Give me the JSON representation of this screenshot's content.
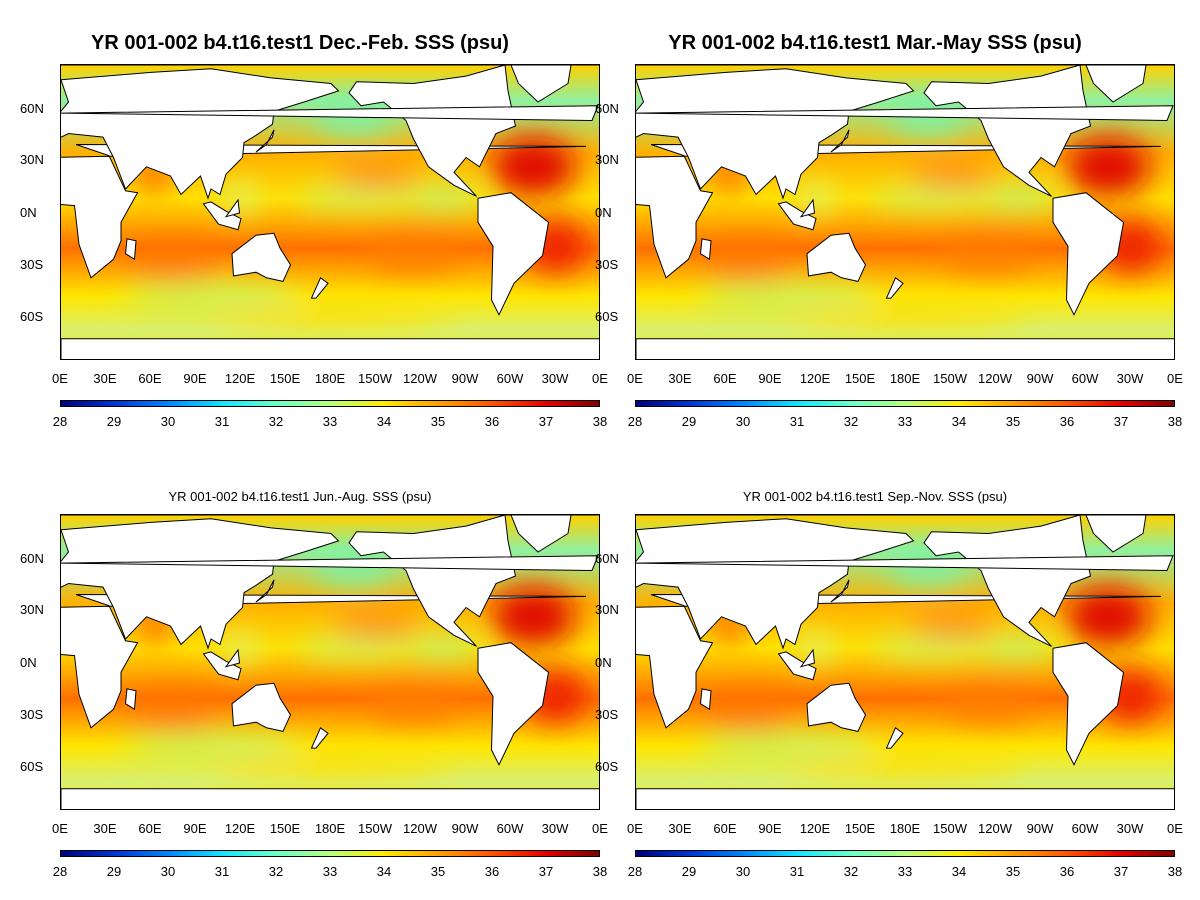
{
  "colorbar": {
    "ticks": [
      "28",
      "29",
      "30",
      "31",
      "32",
      "33",
      "34",
      "35",
      "36",
      "37",
      "38"
    ],
    "colors": [
      "#00007f",
      "#0035d0",
      "#0087ff",
      "#16e3ff",
      "#6bffc8",
      "#b6ff7f",
      "#ffeb00",
      "#ffa000",
      "#ff5500",
      "#e50000",
      "#7f0000"
    ]
  },
  "axes": {
    "lat_labels": [
      "60N",
      "30N",
      "0N",
      "30S",
      "60S"
    ],
    "lon_labels": [
      "0E",
      "30E",
      "60E",
      "90E",
      "120E",
      "150E",
      "180E",
      "150W",
      "120W",
      "90W",
      "60W",
      "30W",
      "0E"
    ]
  },
  "panels": [
    {
      "title": "YR 001-002 b4.t16.test1 Dec.-Feb. SSS (psu)",
      "title_size": "big"
    },
    {
      "title": "YR 001-002 b4.t16.test1 Mar.-May SSS (psu)",
      "title_size": "big"
    },
    {
      "title": "YR 001-002 b4.t16.test1 Jun.-Aug. SSS (psu)",
      "title_size": "small"
    },
    {
      "title": "YR 001-002 b4.t16.test1 Sep.-Nov. SSS (psu)",
      "title_size": "small"
    }
  ]
}
